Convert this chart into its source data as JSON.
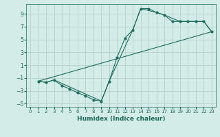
{
  "xlabel": "Humidex (Indice chaleur)",
  "background_color": "#d4ece8",
  "grid_color": "#b8d4cf",
  "line_color": "#1f6b5e",
  "xlim": [
    -0.5,
    23.5
  ],
  "ylim": [
    -5.5,
    10.5
  ],
  "xticks": [
    0,
    1,
    2,
    3,
    4,
    5,
    6,
    7,
    8,
    9,
    10,
    11,
    12,
    13,
    14,
    15,
    16,
    17,
    18,
    19,
    20,
    21,
    22,
    23
  ],
  "yticks": [
    -5,
    -3,
    -1,
    1,
    3,
    5,
    7,
    9
  ],
  "line1_x": [
    1,
    2,
    3,
    4,
    5,
    6,
    7,
    8,
    9,
    10,
    11,
    12,
    13,
    14,
    15,
    16,
    17,
    18,
    19,
    20,
    21,
    22,
    23
  ],
  "line1_y": [
    -1.5,
    -1.7,
    -1.3,
    -2.2,
    -2.7,
    -3.3,
    -3.8,
    -4.4,
    -4.6,
    -1.5,
    2.2,
    5.2,
    6.5,
    9.8,
    9.8,
    9.2,
    8.8,
    7.8,
    7.8,
    7.8,
    7.8,
    7.8,
    6.2
  ],
  "line2_x": [
    1,
    2,
    3,
    9,
    10,
    13,
    14,
    16,
    17,
    19,
    20,
    21,
    22,
    23
  ],
  "line2_y": [
    -1.5,
    -1.7,
    -1.3,
    -4.6,
    -1.5,
    6.5,
    9.8,
    9.2,
    8.8,
    7.8,
    7.8,
    7.8,
    7.8,
    6.2
  ],
  "line3_x": [
    1,
    23
  ],
  "line3_y": [
    -1.5,
    6.2
  ]
}
